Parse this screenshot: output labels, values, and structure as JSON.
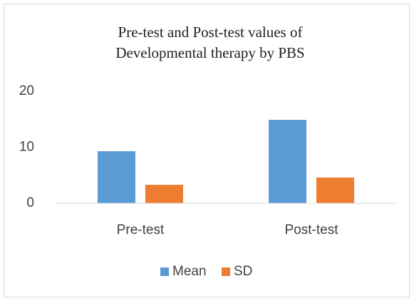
{
  "chart_data": {
    "type": "bar",
    "title": [
      "Pre-test and Post-test values of",
      "Developmental therapy by PBS"
    ],
    "categories": [
      "Pre-test",
      "Post-test"
    ],
    "series": [
      {
        "name": "Mean",
        "color": "#5b9bd5",
        "values": [
          9.3,
          14.9
        ]
      },
      {
        "name": "SD",
        "color": "#ed7d31",
        "values": [
          3.3,
          4.6
        ]
      }
    ],
    "ylim": [
      0,
      20
    ],
    "yticks": [
      0,
      10,
      20
    ],
    "grid": false,
    "legend": "bottom"
  }
}
